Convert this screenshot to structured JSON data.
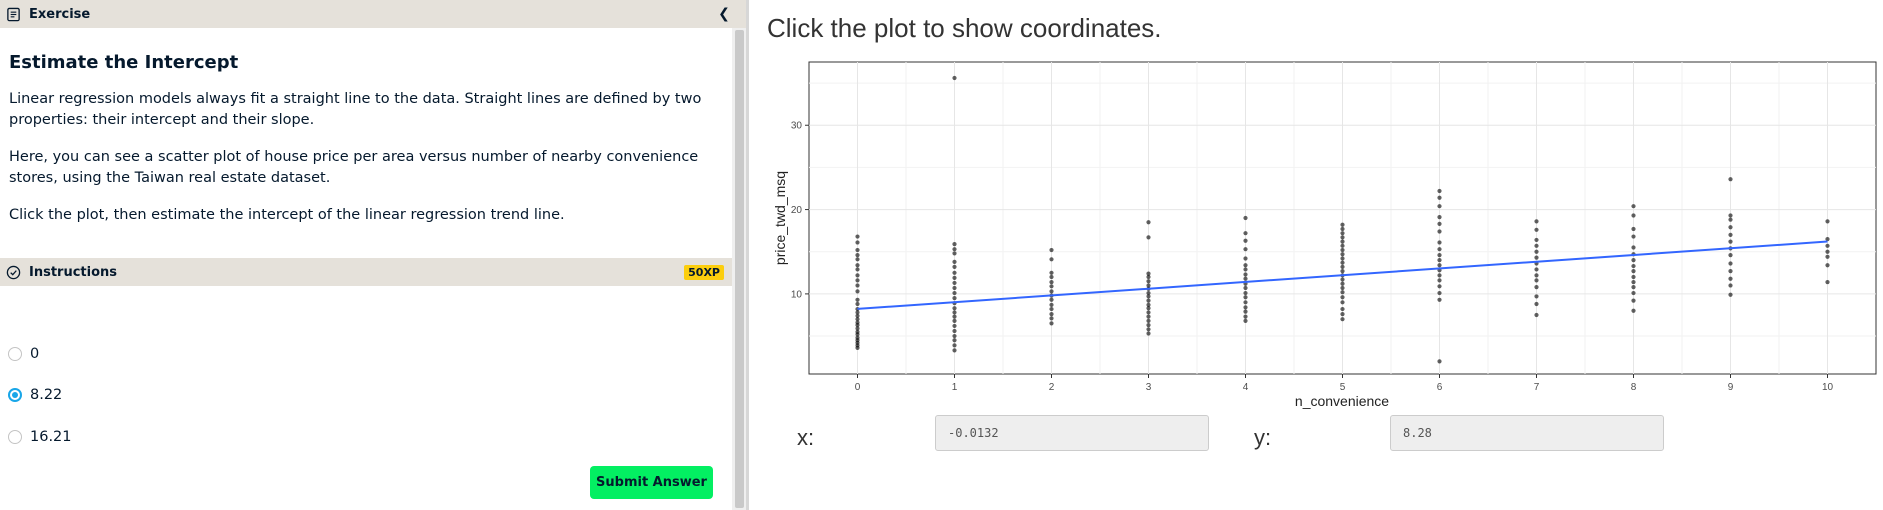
{
  "exercise_bar": {
    "icon": "document-icon",
    "label": "Exercise",
    "collapse_icon": "chevron-left-icon"
  },
  "exercise": {
    "title": "Estimate the Intercept",
    "paragraphs": [
      "Linear regression models always fit a straight line to the data. Straight lines are defined by two properties: their intercept and their slope.",
      "Here, you can see a scatter plot of house price per area versus number of nearby convenience stores, using the Taiwan real estate dataset.",
      "Click the plot, then estimate the intercept of the linear regression trend line."
    ]
  },
  "instructions_bar": {
    "icon": "check-circle-icon",
    "label": "Instructions",
    "xp_badge": "50XP"
  },
  "options": [
    {
      "label": "0",
      "selected": false
    },
    {
      "label": "8.22",
      "selected": true
    },
    {
      "label": "16.21",
      "selected": false
    }
  ],
  "submit_label": "Submit Answer",
  "colors": {
    "accent_green": "#03ef62",
    "radio_blue": "#19a6e8",
    "badge_yellow": "#fcce0d",
    "trend_line": "#3366ff"
  },
  "plot_heading": "Click the plot to show coordinates.",
  "coords": {
    "x_label": "x:",
    "x_value": "-0.0132",
    "y_label": "y:",
    "y_value": "8.28"
  },
  "chart_data": {
    "type": "scatter",
    "title": "",
    "xlabel": "n_convenience",
    "ylabel": "price_twd_msq",
    "xlim": [
      -0.5,
      10.5
    ],
    "ylim": [
      0.5,
      37.5
    ],
    "xticks": [
      0,
      1,
      2,
      3,
      4,
      5,
      6,
      7,
      8,
      9,
      10
    ],
    "yticks": [
      10,
      20,
      30
    ],
    "grid": true,
    "series": [
      {
        "points": [
          [
            0,
            3.6
          ],
          [
            0,
            3.9
          ],
          [
            0,
            4.2
          ],
          [
            0,
            4.5
          ],
          [
            0,
            4.8
          ],
          [
            0,
            5.2
          ],
          [
            0,
            5.5
          ],
          [
            0,
            5.9
          ],
          [
            0,
            6.3
          ],
          [
            0,
            6.6
          ],
          [
            0,
            7.0
          ],
          [
            0,
            7.4
          ],
          [
            0,
            7.8
          ],
          [
            0,
            8.2
          ],
          [
            0,
            8.8
          ],
          [
            0,
            9.3
          ],
          [
            0,
            10.3
          ],
          [
            0,
            11.0
          ],
          [
            0,
            11.6
          ],
          [
            0,
            12.2
          ],
          [
            0,
            12.9
          ],
          [
            0,
            13.4
          ],
          [
            0,
            14.1
          ],
          [
            0,
            14.6
          ],
          [
            0,
            15.2
          ],
          [
            0,
            16.1
          ],
          [
            0,
            16.8
          ],
          [
            1,
            3.3
          ],
          [
            1,
            3.9
          ],
          [
            1,
            4.5
          ],
          [
            1,
            5.0
          ],
          [
            1,
            5.6
          ],
          [
            1,
            6.2
          ],
          [
            1,
            6.8
          ],
          [
            1,
            7.3
          ],
          [
            1,
            7.8
          ],
          [
            1,
            8.3
          ],
          [
            1,
            8.9
          ],
          [
            1,
            9.5
          ],
          [
            1,
            10.1
          ],
          [
            1,
            10.7
          ],
          [
            1,
            11.3
          ],
          [
            1,
            11.9
          ],
          [
            1,
            12.5
          ],
          [
            1,
            13.2
          ],
          [
            1,
            13.8
          ],
          [
            1,
            14.8
          ],
          [
            1,
            15.3
          ],
          [
            1,
            15.9
          ],
          [
            1,
            35.6
          ],
          [
            2,
            6.5
          ],
          [
            2,
            7.1
          ],
          [
            2,
            7.6
          ],
          [
            2,
            8.2
          ],
          [
            2,
            8.7
          ],
          [
            2,
            9.3
          ],
          [
            2,
            9.8
          ],
          [
            2,
            10.3
          ],
          [
            2,
            10.9
          ],
          [
            2,
            11.4
          ],
          [
            2,
            12.0
          ],
          [
            2,
            12.5
          ],
          [
            2,
            14.1
          ],
          [
            2,
            15.2
          ],
          [
            3,
            5.3
          ],
          [
            3,
            5.8
          ],
          [
            3,
            6.3
          ],
          [
            3,
            6.8
          ],
          [
            3,
            7.3
          ],
          [
            3,
            7.8
          ],
          [
            3,
            8.3
          ],
          [
            3,
            8.7
          ],
          [
            3,
            9.2
          ],
          [
            3,
            9.7
          ],
          [
            3,
            10.1
          ],
          [
            3,
            10.6
          ],
          [
            3,
            11.0
          ],
          [
            3,
            11.5
          ],
          [
            3,
            12.0
          ],
          [
            3,
            12.4
          ],
          [
            3,
            16.7
          ],
          [
            3,
            18.5
          ],
          [
            4,
            6.8
          ],
          [
            4,
            7.3
          ],
          [
            4,
            7.9
          ],
          [
            4,
            8.4
          ],
          [
            4,
            9.0
          ],
          [
            4,
            9.6
          ],
          [
            4,
            10.1
          ],
          [
            4,
            10.7
          ],
          [
            4,
            11.2
          ],
          [
            4,
            11.8
          ],
          [
            4,
            12.3
          ],
          [
            4,
            12.9
          ],
          [
            4,
            13.4
          ],
          [
            4,
            14.2
          ],
          [
            4,
            15.3
          ],
          [
            4,
            16.3
          ],
          [
            4,
            17.2
          ],
          [
            4,
            19.0
          ],
          [
            5,
            7.0
          ],
          [
            5,
            7.6
          ],
          [
            5,
            8.2
          ],
          [
            5,
            9.0
          ],
          [
            5,
            9.6
          ],
          [
            5,
            10.2
          ],
          [
            5,
            10.7
          ],
          [
            5,
            11.2
          ],
          [
            5,
            11.7
          ],
          [
            5,
            12.2
          ],
          [
            5,
            12.7
          ],
          [
            5,
            13.2
          ],
          [
            5,
            13.7
          ],
          [
            5,
            14.2
          ],
          [
            5,
            14.7
          ],
          [
            5,
            15.2
          ],
          [
            5,
            15.7
          ],
          [
            5,
            16.2
          ],
          [
            5,
            16.7
          ],
          [
            5,
            17.2
          ],
          [
            5,
            17.7
          ],
          [
            5,
            18.2
          ],
          [
            6,
            2.0
          ],
          [
            6,
            9.3
          ],
          [
            6,
            10.1
          ],
          [
            6,
            10.9
          ],
          [
            6,
            11.6
          ],
          [
            6,
            12.2
          ],
          [
            6,
            12.8
          ],
          [
            6,
            13.4
          ],
          [
            6,
            14.0
          ],
          [
            6,
            14.6
          ],
          [
            6,
            15.3
          ],
          [
            6,
            16.1
          ],
          [
            6,
            17.4
          ],
          [
            6,
            18.3
          ],
          [
            6,
            19.1
          ],
          [
            6,
            20.4
          ],
          [
            6,
            21.4
          ],
          [
            6,
            22.2
          ],
          [
            7,
            7.5
          ],
          [
            7,
            8.8
          ],
          [
            7,
            9.7
          ],
          [
            7,
            10.8
          ],
          [
            7,
            11.6
          ],
          [
            7,
            12.2
          ],
          [
            7,
            12.9
          ],
          [
            7,
            13.6
          ],
          [
            7,
            14.3
          ],
          [
            7,
            15.0
          ],
          [
            7,
            15.7
          ],
          [
            7,
            16.4
          ],
          [
            7,
            17.6
          ],
          [
            7,
            18.6
          ],
          [
            8,
            8.0
          ],
          [
            8,
            9.2
          ],
          [
            8,
            10.1
          ],
          [
            8,
            10.8
          ],
          [
            8,
            11.4
          ],
          [
            8,
            12.0
          ],
          [
            8,
            12.7
          ],
          [
            8,
            13.3
          ],
          [
            8,
            14.0
          ],
          [
            8,
            14.7
          ],
          [
            8,
            15.5
          ],
          [
            8,
            16.8
          ],
          [
            8,
            17.7
          ],
          [
            8,
            19.3
          ],
          [
            8,
            20.4
          ],
          [
            9,
            9.9
          ],
          [
            9,
            11.0
          ],
          [
            9,
            11.8
          ],
          [
            9,
            12.7
          ],
          [
            9,
            13.6
          ],
          [
            9,
            14.6
          ],
          [
            9,
            15.4
          ],
          [
            9,
            16.2
          ],
          [
            9,
            17.0
          ],
          [
            9,
            17.9
          ],
          [
            9,
            18.8
          ],
          [
            9,
            19.3
          ],
          [
            9,
            23.6
          ],
          [
            10,
            11.4
          ],
          [
            10,
            13.4
          ],
          [
            10,
            14.4
          ],
          [
            10,
            15.0
          ],
          [
            10,
            15.7
          ],
          [
            10,
            16.5
          ],
          [
            10,
            18.6
          ]
        ]
      }
    ],
    "trend_line": {
      "x": [
        0,
        10
      ],
      "y": [
        8.22,
        16.21
      ]
    }
  }
}
